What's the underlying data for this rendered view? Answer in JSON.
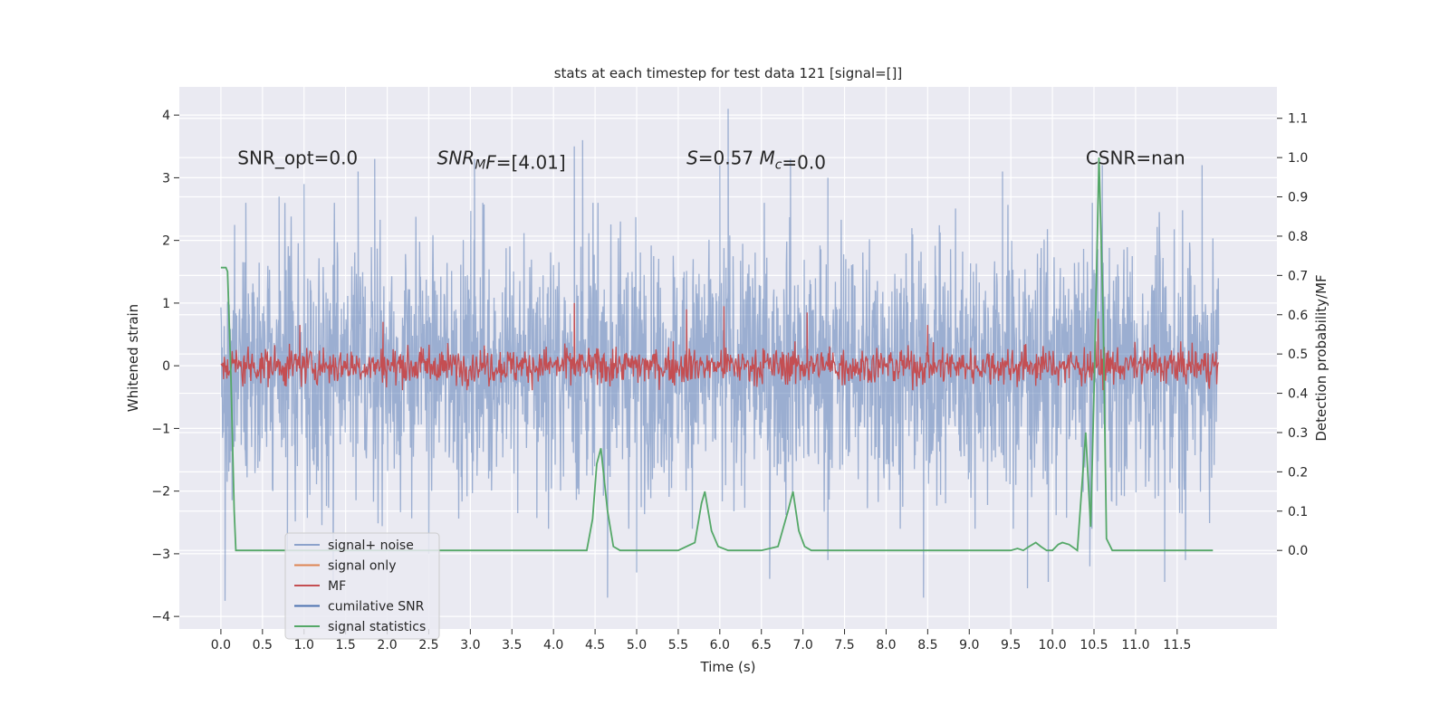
{
  "chart_data": {
    "type": "line",
    "title": "stats at each timestep for test data 121 [signal=[]]",
    "xlabel": "Time (s)",
    "ylabel": "Whitened strain",
    "ylabel_right": "Detection probability/MF",
    "xlim": [
      -0.5,
      12.7
    ],
    "ylim": [
      -4.2,
      4.45
    ],
    "ylim_right": [
      -0.2,
      1.18
    ],
    "x_ticks": [
      0.0,
      0.5,
      1.0,
      1.5,
      2.0,
      2.5,
      3.0,
      3.5,
      4.0,
      4.5,
      5.0,
      5.5,
      6.0,
      6.5,
      7.0,
      7.5,
      8.0,
      8.5,
      9.0,
      9.5,
      10.0,
      10.5,
      11.0,
      11.5
    ],
    "x_tick_labels": [
      "0.0",
      "0.5",
      "1.0",
      "1.5",
      "2.0",
      "2.5",
      "3.0",
      "3.5",
      "4.0",
      "4.5",
      "5.0",
      "5.5",
      "6.0",
      "6.5",
      "7.0",
      "7.5",
      "8.0",
      "8.5",
      "9.0",
      "9.5",
      "10.0",
      "10.5",
      "11.0",
      "11.5"
    ],
    "y_ticks": [
      -4,
      -3,
      -2,
      -1,
      0,
      1,
      2,
      3,
      4
    ],
    "y_tick_labels": [
      "−4",
      "−3",
      "−2",
      "−1",
      "0",
      "1",
      "2",
      "3",
      "4"
    ],
    "y_right_ticks": [
      0.0,
      0.1,
      0.2,
      0.3,
      0.4,
      0.5,
      0.6,
      0.7,
      0.8,
      0.9,
      1.0,
      1.1
    ],
    "y_right_tick_labels": [
      "0.0",
      "0.1",
      "0.2",
      "0.3",
      "0.4",
      "0.5",
      "0.6",
      "0.7",
      "0.8",
      "0.9",
      "1.0",
      "1.1"
    ],
    "grid": true,
    "legend_position": "lower-left",
    "annotations": [
      {
        "x": 0.2,
        "y": 3.3,
        "parts": [
          {
            "t": "SNR_opt=0.0",
            "i": false
          }
        ]
      },
      {
        "x": 2.6,
        "y": 3.3,
        "parts": [
          {
            "t": "SNR",
            "i": true
          },
          {
            "t": "M",
            "i": true,
            "sub": true
          },
          {
            "t": "F",
            "i": true
          },
          {
            "t": "=[4.01]",
            "i": false
          }
        ]
      },
      {
        "x": 5.6,
        "y": 3.3,
        "parts": [
          {
            "t": "S",
            "i": true
          },
          {
            "t": "=0.57   ",
            "i": false
          },
          {
            "t": "M",
            "i": true
          },
          {
            "t": "c",
            "i": true,
            "sub": true
          },
          {
            "t": "=0.0",
            "i": false
          }
        ]
      },
      {
        "x": 10.4,
        "y": 3.3,
        "parts": [
          {
            "t": "CSNR=nan",
            "i": false
          }
        ]
      }
    ],
    "series": [
      {
        "name": "signal+ noise",
        "color": "#4c72b0",
        "opacity": 0.5,
        "axis": "left",
        "x_range": [
          0.0,
          12.0
        ],
        "amplitude": 1.0,
        "spikes_high": [
          [
            0.3,
            2.6
          ],
          [
            0.7,
            2.7
          ],
          [
            1.0,
            2.9
          ],
          [
            1.65,
            3.1
          ],
          [
            1.85,
            3.3
          ],
          [
            3.05,
            3.3
          ],
          [
            4.25,
            3.5
          ],
          [
            4.35,
            3.6
          ],
          [
            6.1,
            4.1
          ],
          [
            6.0,
            3.2
          ],
          [
            6.85,
            3.3
          ],
          [
            7.3,
            3.0
          ],
          [
            9.4,
            3.1
          ],
          [
            10.6,
            3.2
          ],
          [
            11.8,
            3.2
          ]
        ],
        "spikes_low": [
          [
            0.05,
            -3.75
          ],
          [
            0.8,
            -2.95
          ],
          [
            1.35,
            -3.5
          ],
          [
            2.5,
            -3.0
          ],
          [
            4.65,
            -3.7
          ],
          [
            5.0,
            -3.3
          ],
          [
            6.6,
            -3.4
          ],
          [
            7.3,
            -3.1
          ],
          [
            8.45,
            -3.7
          ],
          [
            9.7,
            -3.55
          ],
          [
            9.95,
            -3.45
          ],
          [
            10.45,
            -3.2
          ],
          [
            11.35,
            -3.45
          ],
          [
            11.6,
            -3.1
          ]
        ]
      },
      {
        "name": "signal only",
        "color": "#dd8452",
        "axis": "left",
        "x": [],
        "values": []
      },
      {
        "name": "MF",
        "color": "#c44e52",
        "opacity": 1.0,
        "axis": "left",
        "x_range": [
          0.0,
          12.0
        ],
        "amplitude": 0.15,
        "spikes_high": [
          [
            0.95,
            0.65
          ],
          [
            1.95,
            0.7
          ],
          [
            4.25,
            1.0
          ],
          [
            5.6,
            0.9
          ],
          [
            6.05,
            0.95
          ],
          [
            7.05,
            0.85
          ],
          [
            8.5,
            0.65
          ],
          [
            10.55,
            0.75
          ]
        ]
      },
      {
        "name": "cumilative SNR",
        "color": "#4c72b0",
        "axis": "left",
        "x": [],
        "values": []
      },
      {
        "name": "signal statistics",
        "color": "#55a868",
        "axis": "right",
        "x": [
          0.0,
          0.06,
          0.08,
          0.12,
          0.16,
          0.18,
          0.3,
          4.4,
          4.47,
          4.52,
          4.57,
          4.65,
          4.72,
          4.8,
          5.5,
          5.7,
          5.78,
          5.82,
          5.9,
          5.98,
          6.1,
          6.5,
          6.7,
          6.82,
          6.88,
          6.95,
          7.02,
          7.1,
          9.5,
          9.58,
          9.65,
          9.72,
          9.8,
          9.86,
          9.93,
          10.0,
          10.07,
          10.12,
          10.2,
          10.3,
          10.34,
          10.4,
          10.46,
          10.5,
          10.56,
          10.61,
          10.65,
          10.72,
          10.8,
          11.0,
          11.93
        ],
        "values": [
          0.72,
          0.72,
          0.71,
          0.45,
          0.1,
          0.0,
          0.0,
          0.0,
          0.08,
          0.22,
          0.26,
          0.1,
          0.01,
          0.0,
          0.0,
          0.02,
          0.12,
          0.15,
          0.05,
          0.01,
          0.0,
          0.0,
          0.01,
          0.1,
          0.15,
          0.05,
          0.01,
          0.0,
          0.0,
          0.005,
          0.0,
          0.01,
          0.02,
          0.01,
          0.0,
          0.0,
          0.015,
          0.02,
          0.015,
          0.0,
          0.12,
          0.3,
          0.06,
          0.4,
          1.0,
          0.6,
          0.03,
          0.0,
          0.0,
          0.0,
          0.0
        ]
      }
    ]
  }
}
